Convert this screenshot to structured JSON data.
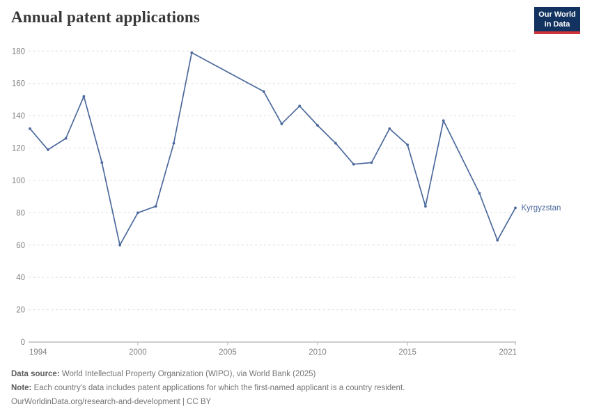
{
  "header": {
    "title": "Annual patent applications"
  },
  "logo": {
    "line1": "Our World",
    "line2": "in Data",
    "bg_color": "#12335f",
    "accent_color": "#d13239"
  },
  "chart_data": {
    "type": "line",
    "title": "Annual patent applications",
    "entity": "Kyrgyzstan",
    "x": [
      1994,
      1995,
      1996,
      1997,
      1998,
      1999,
      2000,
      2001,
      2002,
      2003,
      2004,
      2005,
      2006,
      2007,
      2008,
      2009,
      2010,
      2011,
      2012,
      2013,
      2014,
      2015,
      2016,
      2017,
      2018,
      2019,
      2020,
      2021
    ],
    "values": [
      132,
      119,
      126,
      152,
      111,
      60,
      80,
      84,
      123,
      179,
      null,
      null,
      null,
      155,
      135,
      146,
      134,
      123,
      110,
      111,
      132,
      122,
      84,
      137,
      null,
      92,
      63,
      83
    ],
    "xlabel": "",
    "ylabel": "",
    "ylim": [
      0,
      180
    ],
    "yticks": [
      0,
      20,
      40,
      60,
      80,
      100,
      120,
      140,
      160,
      180
    ],
    "xtick_labels": [
      1994,
      2000,
      2005,
      2010,
      2015,
      2021
    ],
    "line_color": "#4c6a9c",
    "grid": "horizontal-dashed",
    "legend_position": "end-of-line-label"
  },
  "footer": {
    "source_label": "Data source:",
    "source_text": " World Intellectual Property Organization (WIPO), via World Bank (2025)",
    "note_label": "Note:",
    "note_text": " Each country's data includes patent applications for which the first-named applicant is a country resident.",
    "license": "OurWorldinData.org/research-and-development | CC BY"
  }
}
